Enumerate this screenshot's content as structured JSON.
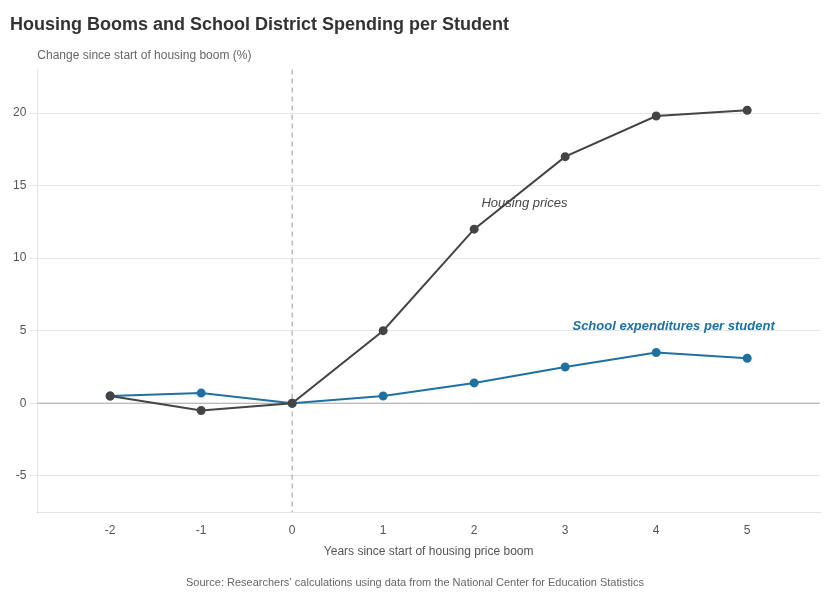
{
  "chart_data": {
    "type": "line",
    "title": "Housing Booms and School District Spending per Student",
    "y_label": "Change since start of housing boom (%)",
    "x_label": "Years since start of housing price boom",
    "source": "Source: Researchers’ calculations using data from the National Center for Education Statistics",
    "x": [
      -2,
      -1,
      0,
      1,
      2,
      3,
      4,
      5
    ],
    "series": [
      {
        "color": "#444444",
        "values": [
          0.5,
          -0.5,
          0,
          5,
          12,
          17,
          19.8,
          20.2
        ]
      },
      {
        "color": "#2070a0",
        "values": [
          0.5,
          0.7,
          0,
          0.5,
          1.4,
          2.5,
          3.5,
          3.1
        ]
      }
    ],
    "marker": "circle",
    "line_style": "solid",
    "xlim": [
      -2.8,
      5.8
    ],
    "xticks": [
      -2,
      -1,
      0,
      1,
      2,
      3,
      4,
      5
    ],
    "ylim": [
      -7.5,
      23
    ],
    "yticks": [
      -5,
      0,
      5,
      10,
      15,
      20
    ],
    "grid": "y",
    "reference_lines": {
      "x": [
        0
      ],
      "y": [
        0
      ]
    },
    "annotations": [
      {
        "text": "Housing prices",
        "x": 2.08,
        "y": 13.8,
        "color": "#444444",
        "style": "italic",
        "weight": "normal"
      },
      {
        "text": "School expenditures per student",
        "x": 3.08,
        "y": 5.3,
        "color": "#2070a0",
        "style": "italic",
        "weight": "bold"
      }
    ]
  }
}
